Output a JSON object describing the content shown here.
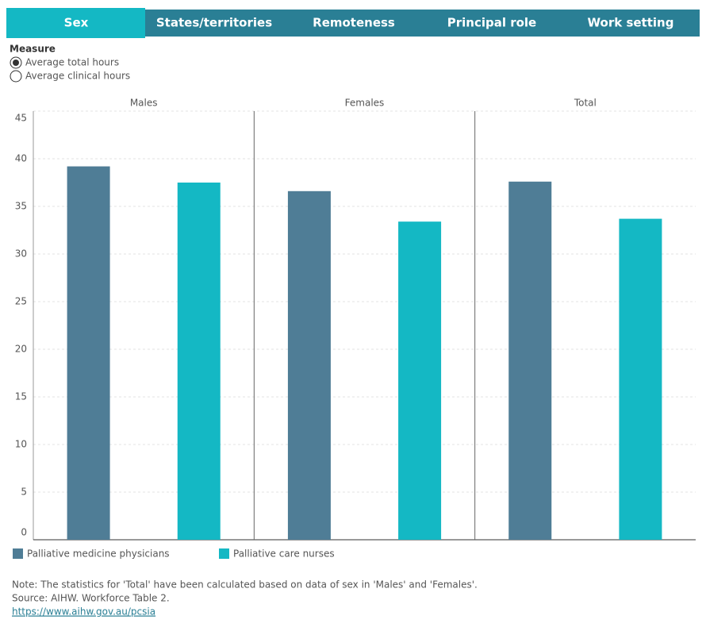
{
  "tabs": [
    "Sex",
    "States/territories",
    "Remoteness",
    "Principal role",
    "Work setting"
  ],
  "measure": {
    "title": "Measure",
    "options": [
      "Average total hours",
      "Average clinical hours"
    ]
  },
  "chart_data": {
    "type": "bar",
    "categories": [
      "Males",
      "Females",
      "Total"
    ],
    "series": [
      {
        "name": "Palliative medicine physicians",
        "color": "#4f7d96",
        "values": [
          39.2,
          36.6,
          37.6
        ]
      },
      {
        "name": "Palliative care nurses",
        "color": "#14b8c4",
        "values": [
          37.5,
          33.4,
          33.7
        ]
      }
    ],
    "ylim": [
      0,
      45
    ],
    "yticks": [
      0,
      5,
      10,
      15,
      20,
      25,
      30,
      35,
      40,
      45
    ],
    "grid": true
  },
  "notes": [
    "Note: The statistics for 'Total' have been calculated based on data of sex in 'Males' and 'Females'.",
    "Source: AIHW. Workforce Table 2."
  ],
  "link": "https://www.aihw.gov.au/pcsia"
}
